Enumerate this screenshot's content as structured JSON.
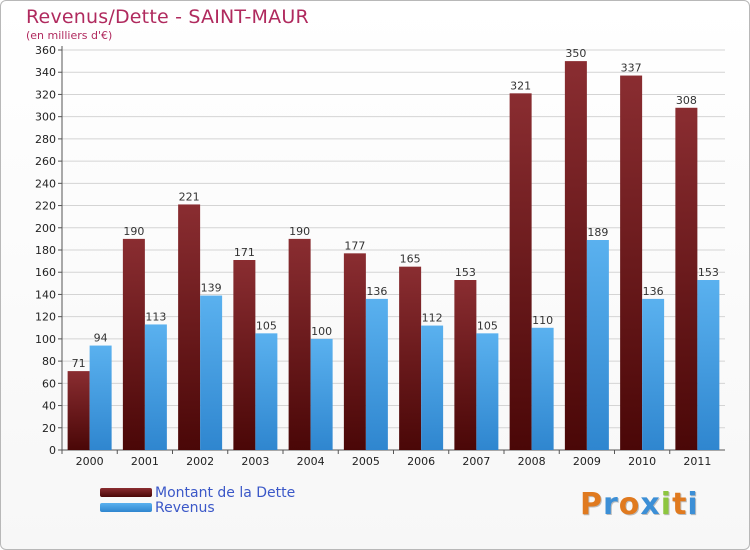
{
  "chart_data": {
    "type": "bar",
    "title": "Revenus/Dette - SAINT-MAUR",
    "subtitle": "(en milliers d'€)",
    "categories": [
      "2000",
      "2001",
      "2002",
      "2003",
      "2004",
      "2005",
      "2006",
      "2007",
      "2008",
      "2009",
      "2010",
      "2011"
    ],
    "series": [
      {
        "name": "Montant de la Dette",
        "color": "#7a1f24",
        "values": [
          71,
          190,
          221,
          171,
          190,
          177,
          165,
          153,
          321,
          350,
          337,
          308
        ]
      },
      {
        "name": "Revenus",
        "color": "#4aa2e6",
        "values": [
          94,
          113,
          139,
          105,
          100,
          136,
          112,
          105,
          110,
          189,
          136,
          153
        ]
      }
    ],
    "ylim": [
      0,
      360
    ],
    "yticks": [
      0,
      20,
      40,
      60,
      80,
      100,
      120,
      140,
      160,
      180,
      200,
      220,
      240,
      260,
      280,
      300,
      320,
      340,
      360
    ],
    "grid": true,
    "legend_position": "bottom-left"
  },
  "logo": {
    "text": "Proxiti",
    "letter_colors": [
      "#e07a1f",
      "#3c8fd6",
      "#e07a1f",
      "#3c8fd6",
      "#8dc63f",
      "#e07a1f",
      "#3c8fd6"
    ]
  }
}
